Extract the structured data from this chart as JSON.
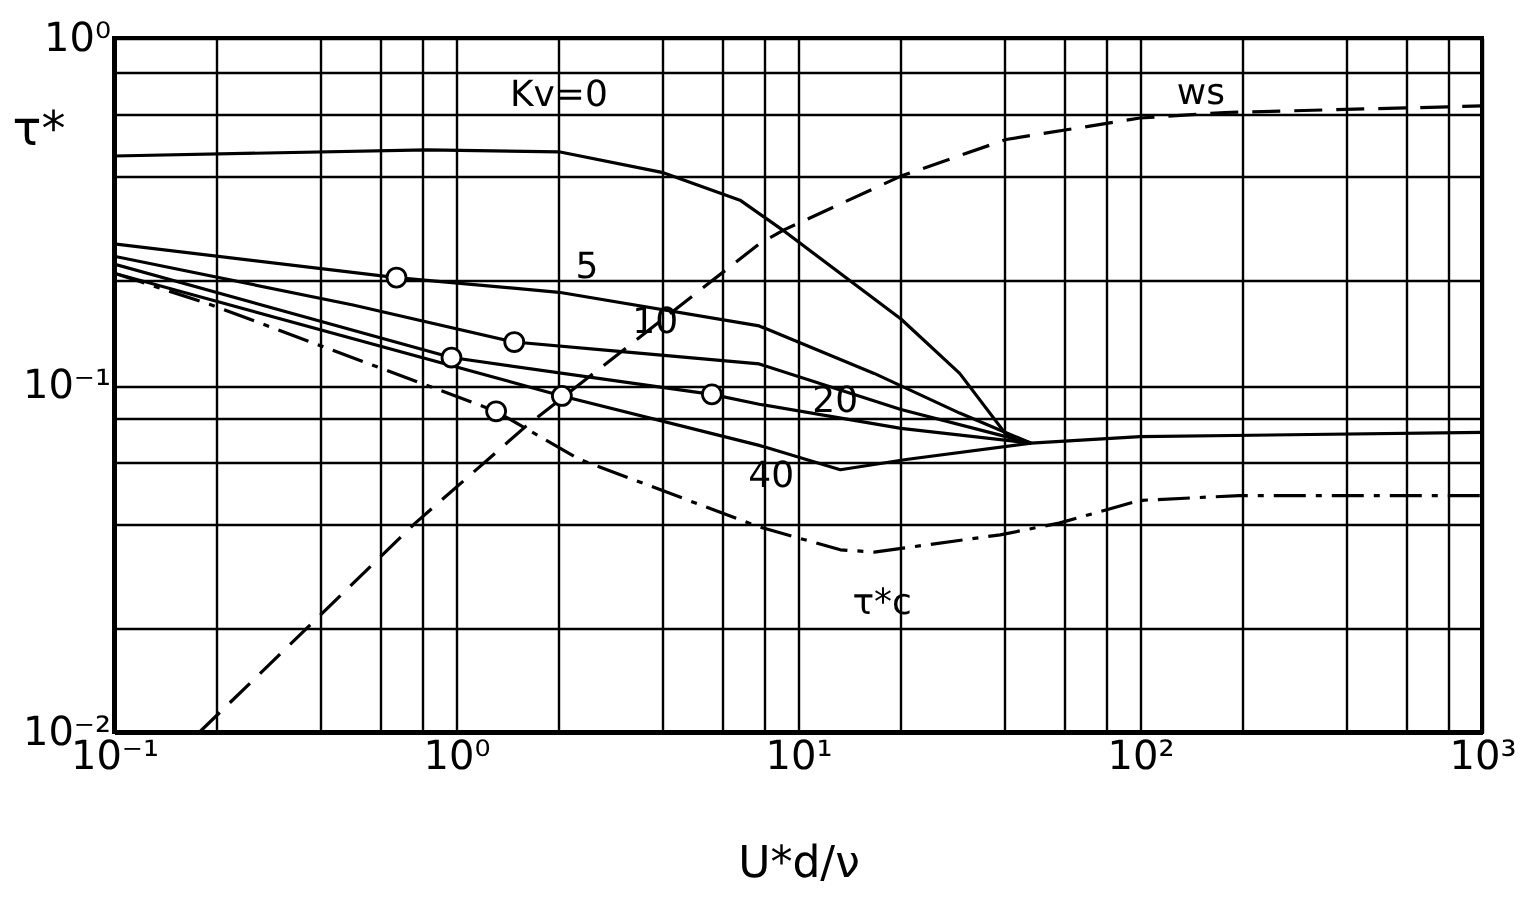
{
  "chart_data": {
    "type": "line",
    "xlabel": "U*d/ν",
    "ylabel": "τ*",
    "log": "xy",
    "grid": true,
    "xlim": [
      0.1,
      1000
    ],
    "ylim": [
      0.01,
      1
    ],
    "xticks": [
      {
        "value": 0.1,
        "label": "10⁻¹"
      },
      {
        "value": 0.2,
        "label": null
      },
      {
        "value": 0.4,
        "label": null
      },
      {
        "value": 0.6,
        "label": null
      },
      {
        "value": 0.8,
        "label": null
      },
      {
        "value": 1,
        "label": "10⁰"
      },
      {
        "value": 2,
        "label": null
      },
      {
        "value": 4,
        "label": null
      },
      {
        "value": 6,
        "label": null
      },
      {
        "value": 8,
        "label": null
      },
      {
        "value": 10,
        "label": "10¹"
      },
      {
        "value": 20,
        "label": null
      },
      {
        "value": 40,
        "label": null
      },
      {
        "value": 60,
        "label": null
      },
      {
        "value": 80,
        "label": null
      },
      {
        "value": 100,
        "label": "10²"
      },
      {
        "value": 200,
        "label": null
      },
      {
        "value": 400,
        "label": null
      },
      {
        "value": 600,
        "label": null
      },
      {
        "value": 800,
        "label": null
      },
      {
        "value": 1000,
        "label": "10³"
      }
    ],
    "yticks": [
      {
        "value": 0.01,
        "label": "10⁻²"
      },
      {
        "value": 0.02,
        "label": null
      },
      {
        "value": 0.04,
        "label": null
      },
      {
        "value": 0.06,
        "label": null
      },
      {
        "value": 0.08,
        "label": null
      },
      {
        "value": 0.1,
        "label": "10⁻¹"
      },
      {
        "value": 0.2,
        "label": null
      },
      {
        "value": 0.4,
        "label": null
      },
      {
        "value": 0.6,
        "label": null
      },
      {
        "value": 0.8,
        "label": null
      },
      {
        "value": 1,
        "label": "10⁰"
      }
    ],
    "series": [
      {
        "name": "Kv=0",
        "color": "#000000",
        "line_style": "solid",
        "x": [
          0.1,
          0.82,
          2,
          4,
          6.8,
          9,
          20,
          29.7,
          40.6,
          48,
          100,
          1000
        ],
        "values": [
          0.457,
          0.476,
          0.47,
          0.41,
          0.34,
          0.28,
          0.155,
          0.108,
          0.072,
          0.068,
          0.071,
          0.073
        ]
      },
      {
        "name": "5",
        "color": "#000000",
        "line_style": "solid",
        "x": [
          0.1,
          0.67,
          2,
          7.7,
          16.7,
          29.7,
          48
        ],
        "values": [
          0.255,
          0.204,
          0.185,
          0.148,
          0.108,
          0.083,
          0.068
        ]
      },
      {
        "name": "10",
        "color": "#000000",
        "line_style": "solid",
        "x": [
          0.1,
          0.5,
          1.48,
          3,
          7.7,
          20,
          48
        ],
        "values": [
          0.235,
          0.17,
          0.133,
          0.125,
          0.115,
          0.085,
          0.068
        ]
      },
      {
        "name": "20",
        "color": "#000000",
        "line_style": "solid",
        "x": [
          0.1,
          0.97,
          5.6,
          7.7,
          20,
          48
        ],
        "values": [
          0.223,
          0.12,
          0.094,
          0.088,
          0.075,
          0.068
        ]
      },
      {
        "name": "40",
        "color": "#000000",
        "line_style": "solid",
        "x": [
          0.1,
          2.04,
          7.7,
          13.3,
          20.7,
          48
        ],
        "values": [
          0.21,
          0.093,
          0.067,
          0.057,
          0.061,
          0.068
        ]
      },
      {
        "name": "ws",
        "color": "#000000",
        "line_style": "dashed",
        "x": [
          0.178,
          0.76,
          1.6,
          7.7,
          9.1,
          20,
          40.6,
          100,
          177,
          1000
        ],
        "values": [
          0.01,
          0.04,
          0.076,
          0.255,
          0.28,
          0.4,
          0.51,
          0.588,
          0.61,
          0.637
        ]
      },
      {
        "name": "τ*c",
        "color": "#000000",
        "line_style": "dashdot",
        "x": [
          0.1,
          0.19,
          1.31,
          2.3,
          7.7,
          13.3,
          16.7,
          39,
          58,
          100,
          195,
          1000
        ],
        "values": [
          0.21,
          0.171,
          0.084,
          0.061,
          0.039,
          0.0335,
          0.033,
          0.037,
          0.04,
          0.0465,
          0.048,
          0.048
        ]
      },
      {
        "type": "scatter",
        "marker": "circle",
        "color": "#000000",
        "x": [
          0.67,
          0.97,
          1.31,
          1.48,
          2.04,
          5.6
        ],
        "values": [
          0.204,
          0.12,
          0.084,
          0.133,
          0.093,
          0.094
        ]
      }
    ]
  }
}
